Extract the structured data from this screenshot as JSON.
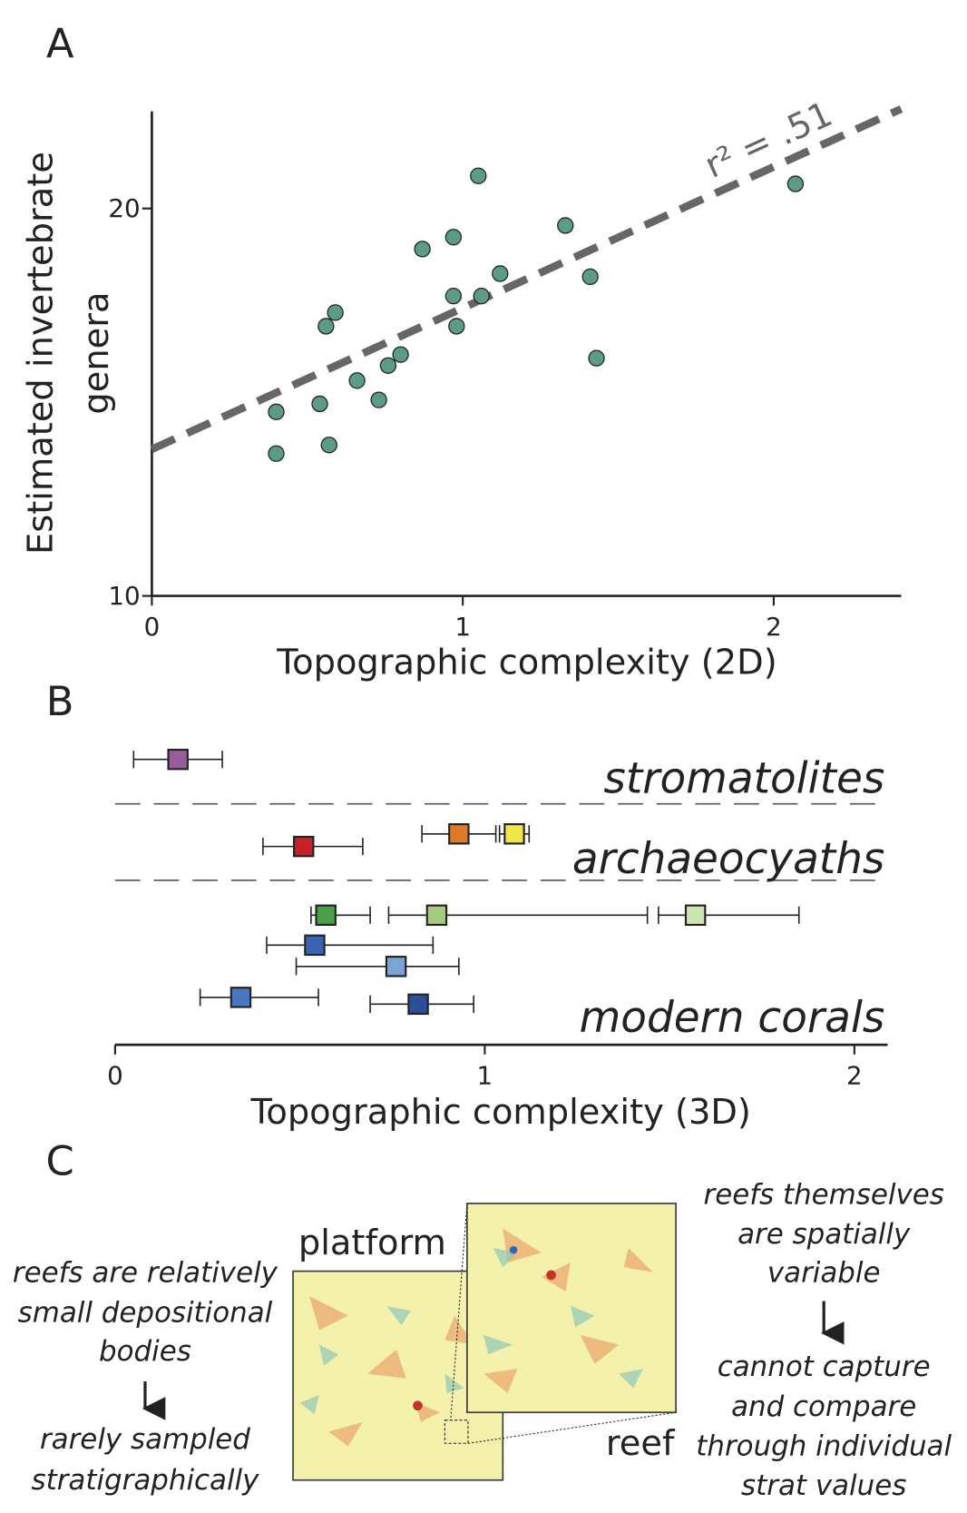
{
  "chart_data": [
    {
      "type": "scatter",
      "panel": "A",
      "x_label": "Topographic complexity (2D)",
      "y_label": [
        "Estimated invertebrate",
        "genera"
      ],
      "x": [
        0.4,
        0.4,
        0.54,
        0.57,
        0.56,
        0.59,
        0.66,
        0.73,
        0.76,
        0.8,
        0.87,
        0.97,
        0.97,
        0.98,
        1.05,
        1.06,
        1.12,
        1.33,
        1.41,
        1.43,
        2.07
      ],
      "y": [
        13.9,
        12.9,
        14.1,
        13.1,
        16.2,
        16.6,
        14.7,
        14.2,
        15.1,
        15.4,
        18.6,
        19.0,
        17.1,
        16.2,
        21.2,
        17.1,
        17.8,
        19.4,
        17.7,
        15.3,
        20.9
      ],
      "color": "#5c9c86",
      "xlim": [
        0,
        2.41
      ],
      "ylim": [
        10,
        23.8
      ],
      "ylog": true,
      "xticks": [
        0,
        1,
        2
      ],
      "yticks": [
        10,
        20
      ],
      "fit": {
        "x": [
          0,
          2.41
        ],
        "y": [
          13.0,
          23.9
        ],
        "color": "#666666",
        "label": "r² = .51"
      }
    },
    {
      "type": "errorbar",
      "panel": "B",
      "x_label": "Topographic complexity (3D)",
      "xlim": [
        0,
        2.09
      ],
      "xticks": [
        0,
        1,
        2
      ],
      "groups": [
        {
          "name": "stromatolites",
          "values": [
            0.17
          ],
          "lows": [
            0.05
          ],
          "highs": [
            0.29
          ],
          "colors": [
            "#9a5c9e"
          ]
        },
        {
          "name": "archaeocyaths",
          "values": [
            0.93,
            1.08,
            0.51
          ],
          "lows": [
            0.83,
            1.04,
            0.4
          ],
          "highs": [
            1.03,
            1.12,
            0.67
          ],
          "colors": [
            "#e07a28",
            "#f2e64a",
            "#c7202a"
          ]
        },
        {
          "name": "modern corals",
          "values": [
            0.57,
            0.87,
            1.57,
            0.54,
            0.76,
            0.34,
            0.82
          ],
          "lows": [
            0.53,
            0.74,
            1.47,
            0.41,
            0.49,
            0.23,
            0.69
          ],
          "highs": [
            0.69,
            1.44,
            1.85,
            0.86,
            0.93,
            0.55,
            0.97
          ],
          "colors": [
            "#4b9e48",
            "#a6ca7e",
            "#cde5b0",
            "#3b63b1",
            "#7aa4d6",
            "#4a78c0",
            "#2b4e98"
          ]
        }
      ]
    }
  ],
  "panel_c": {
    "panel": "C",
    "platform": "platform",
    "reef": "reef",
    "left_top": [
      "reefs are relatively",
      "small depositional",
      "bodies"
    ],
    "left_bottom": [
      "rarely sampled",
      "stratigraphically"
    ],
    "right_top": [
      "reefs themselves",
      "are spatially",
      "variable"
    ],
    "right_bottom": [
      "cannot capture",
      "and compare",
      "through individual",
      "strat values"
    ]
  }
}
